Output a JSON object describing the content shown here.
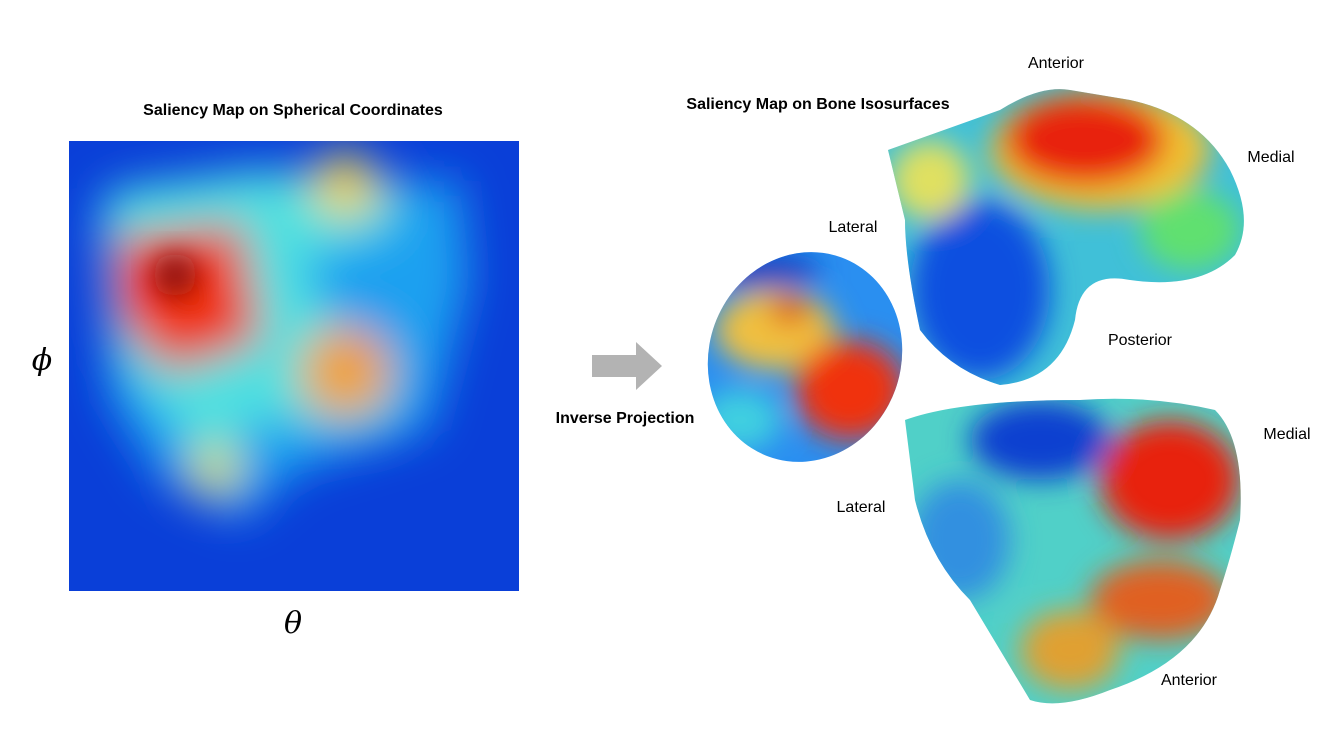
{
  "left_panel": {
    "title": "Saliency Map on Spherical Coordinates",
    "x_axis_label": "θ",
    "y_axis_label": "ϕ"
  },
  "arrow": {
    "label": "Inverse Projection"
  },
  "right_panel": {
    "title": "Saliency Map on Bone Isosurfaces",
    "labels": [
      "Anterior",
      "Medial",
      "Lateral",
      "Posterior",
      "Medial",
      "Lateral",
      "Anterior"
    ]
  }
}
